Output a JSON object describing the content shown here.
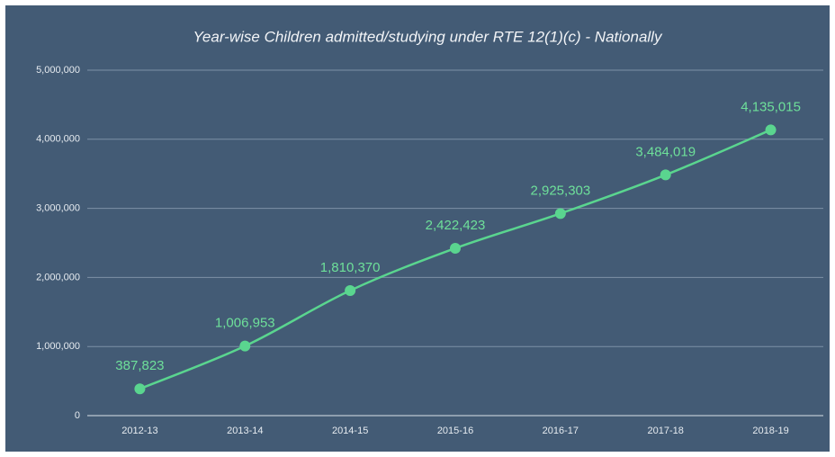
{
  "chart_data": {
    "type": "line",
    "title": "Year-wise Children admitted/studying under RTE 12(1)(c) - Nationally",
    "categories": [
      "2012-13",
      "2013-14",
      "2014-15",
      "2015-16",
      "2016-17",
      "2017-18",
      "2018-19"
    ],
    "series": [
      {
        "name": "Children admitted/studying",
        "color": "#5ad58f",
        "values": [
          387823,
          1006953,
          1810370,
          2422423,
          2925303,
          3484019,
          4135015
        ],
        "value_labels": [
          "387,823",
          "1,006,953",
          "1,810,370",
          "2,422,423",
          "2,925,303",
          "3,484,019",
          "4,135,015"
        ]
      }
    ],
    "ylim": [
      0,
      5000000
    ],
    "yticks": [
      {
        "value": 0,
        "label": "0"
      },
      {
        "value": 1000000,
        "label": "1,000,000"
      },
      {
        "value": 2000000,
        "label": "2,000,000"
      },
      {
        "value": 3000000,
        "label": "3,000,000"
      },
      {
        "value": 4000000,
        "label": "4,000,000"
      },
      {
        "value": 5000000,
        "label": "5,000,000"
      }
    ],
    "grid": true
  }
}
